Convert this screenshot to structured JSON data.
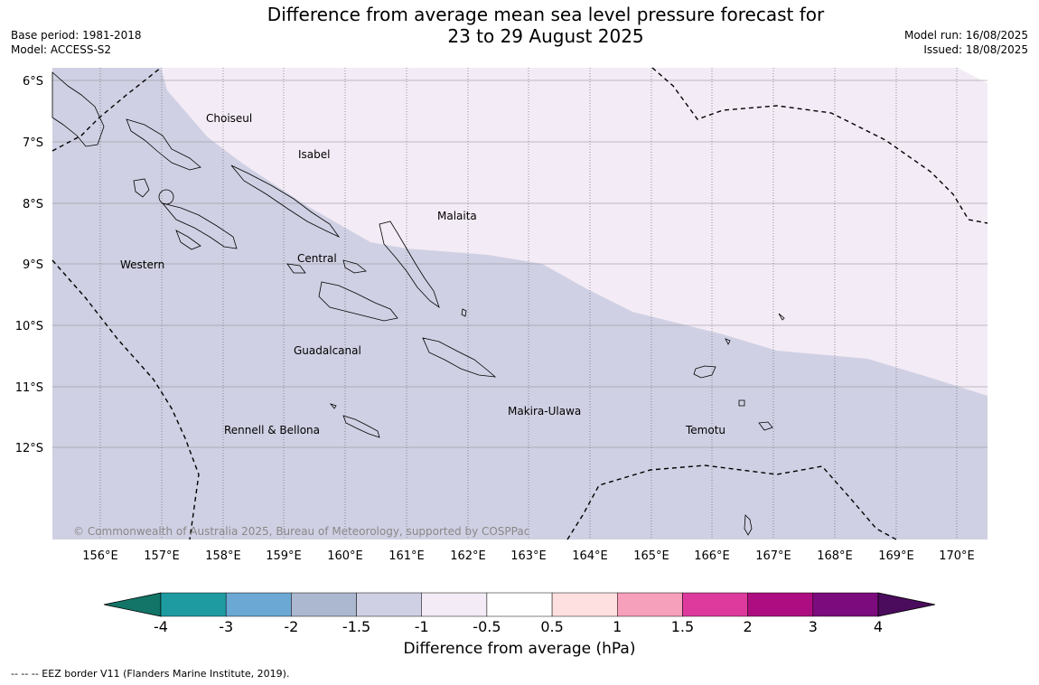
{
  "header": {
    "title_line1": "Difference from average mean sea level pressure forecast for",
    "title_line2": "23 to 29 August 2025",
    "base_period": "Base period: 1981-2018",
    "model": "Model: ACCESS-S2",
    "model_run": "Model run: 16/08/2025",
    "issued": "Issued: 18/08/2025"
  },
  "map": {
    "lat_labels": [
      "6°S",
      "7°S",
      "8°S",
      "9°S",
      "10°S",
      "11°S",
      "12°S"
    ],
    "lon_labels": [
      "156°E",
      "157°E",
      "158°E",
      "159°E",
      "160°E",
      "161°E",
      "162°E",
      "163°E",
      "164°E",
      "165°E",
      "166°E",
      "167°E",
      "168°E",
      "169°E",
      "170°E"
    ],
    "regions": [
      "Choiseul",
      "Isabel",
      "Malaita",
      "Western",
      "Central",
      "Guadalcanal",
      "Makira-Ulawa",
      "Rennell & Bellona",
      "Temotu"
    ],
    "copyright": "© Commonwealth of Australia 2025, Bureau of Meteorology, supported by COSPPac"
  },
  "colorbar": {
    "ticks": [
      "-4",
      "-3",
      "-2",
      "-1.5",
      "-1",
      "-0.5",
      "0.5",
      "1",
      "1.5",
      "2",
      "3",
      "4"
    ],
    "colors": [
      "#127567",
      "#1e9ba1",
      "#6ba8d3",
      "#acb7d0",
      "#d0d0e4",
      "#f3ebf5",
      "#ffffff",
      "#ffe0e0",
      "#f7a0bb",
      "#de3a9d",
      "#ad0d80",
      "#7c0c7e",
      "#4b0c5e"
    ],
    "label": "Difference from average (hPa)"
  },
  "footnote": "-- -- -- EEZ border V11 (Flanders Marine Institute, 2019)."
}
